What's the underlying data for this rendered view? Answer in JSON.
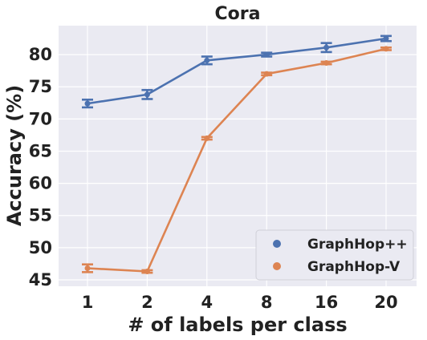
{
  "chart_data": {
    "type": "line",
    "title": "Cora",
    "xlabel": "# of labels per class",
    "ylabel": "Accuracy (%)",
    "categories": [
      "1",
      "2",
      "4",
      "8",
      "16",
      "20"
    ],
    "ylim": [
      44,
      84.5
    ],
    "yticks": [
      45,
      50,
      55,
      60,
      65,
      70,
      75,
      80
    ],
    "grid": true,
    "legend_position": "bottom-right",
    "series": [
      {
        "name": "GraphHop++",
        "color": "#4c72b0",
        "values": [
          72.4,
          73.8,
          79.1,
          80.0,
          81.1,
          82.5
        ],
        "errors": [
          0.6,
          0.7,
          0.6,
          0.3,
          0.7,
          0.4
        ]
      },
      {
        "name": "GraphHop-V",
        "color": "#dd8452",
        "values": [
          46.8,
          46.3,
          67.0,
          77.0,
          78.7,
          80.9
        ],
        "errors": [
          0.6,
          0.2,
          0.2,
          0.2,
          0.2,
          0.2
        ]
      }
    ]
  }
}
